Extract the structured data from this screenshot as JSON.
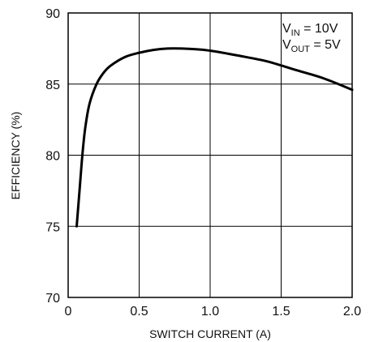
{
  "chart_data": {
    "type": "line",
    "title": "",
    "xlabel": "SWITCH CURRENT (A)",
    "ylabel": "EFFICIENCY (%)",
    "xlim": [
      0,
      2.0
    ],
    "ylim": [
      70,
      90
    ],
    "x_ticks": [
      "0",
      "0.5",
      "1.0",
      "1.5",
      "2.0"
    ],
    "y_ticks": [
      "90",
      "85",
      "80",
      "75",
      "70"
    ],
    "grid": true,
    "annotation": {
      "line1": {
        "main": "V",
        "sub": "IN",
        "rest": " = 10V"
      },
      "line2": {
        "main": "V",
        "sub": "OUT",
        "rest": " = 5V"
      }
    },
    "series": [
      {
        "x": [
          0.06,
          0.08,
          0.1,
          0.12,
          0.15,
          0.2,
          0.25,
          0.3,
          0.4,
          0.5,
          0.6,
          0.7,
          0.8,
          0.9,
          1.0,
          1.2,
          1.4,
          1.6,
          1.8,
          2.0
        ],
        "y": [
          75.0,
          77.5,
          80.0,
          81.9,
          83.6,
          85.0,
          85.8,
          86.3,
          86.9,
          87.2,
          87.4,
          87.5,
          87.5,
          87.45,
          87.35,
          87.0,
          86.6,
          86.0,
          85.4,
          84.6
        ]
      }
    ]
  }
}
